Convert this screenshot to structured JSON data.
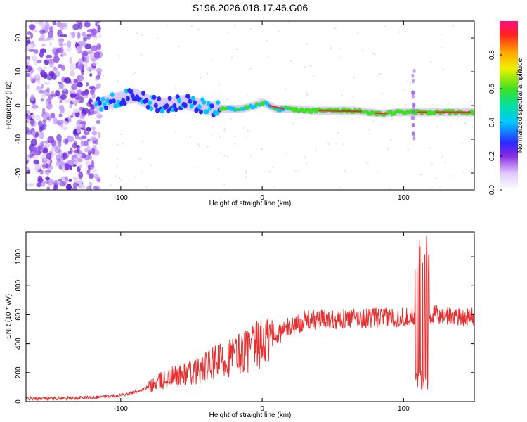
{
  "title": "S196.2026.018.17.46.G06",
  "colors": {
    "snr_line": "#e83030",
    "frame": "#000000",
    "stripe": "#e03030",
    "scatter": "#7a2ee0"
  },
  "chart_data": [
    {
      "type": "heatmap",
      "title": "S196.2026.018.17.46.G06",
      "xlabel": "Height of straight line (km)",
      "ylabel": "Frequency (Hz)",
      "xlim": [
        -167,
        150
      ],
      "ylim": [
        -25,
        25
      ],
      "xticks": [
        -100,
        0,
        100
      ],
      "yticks": [
        -20,
        -10,
        0,
        10,
        20
      ],
      "colorbar": {
        "label": "Normalized spectral amplitude",
        "range": [
          0,
          1
        ],
        "ticks": [
          0.0,
          0.2,
          0.4,
          0.6,
          0.8
        ],
        "tick_labels": [
          "0.0",
          "0.2",
          "0.4",
          "0.6",
          "0.8"
        ]
      },
      "ridge_profile": [
        [
          -117,
          0
        ],
        [
          -100,
          2
        ],
        [
          -90,
          3
        ],
        [
          -80,
          1
        ],
        [
          -70,
          0
        ],
        [
          -55,
          1
        ],
        [
          -45,
          0
        ],
        [
          -35,
          -1
        ],
        [
          -25,
          -1
        ],
        [
          -15,
          -1
        ],
        [
          -5,
          0
        ],
        [
          0,
          1
        ],
        [
          10,
          -1
        ],
        [
          20,
          -1
        ],
        [
          35,
          -1.5
        ],
        [
          50,
          -1.5
        ],
        [
          65,
          -1.5
        ],
        [
          75,
          -2
        ],
        [
          85,
          -2.5
        ],
        [
          95,
          -2
        ],
        [
          105,
          -2
        ],
        [
          115,
          -2
        ],
        [
          125,
          -2
        ],
        [
          150,
          -2
        ]
      ]
    },
    {
      "type": "line",
      "xlabel": "Height of straight line (km)",
      "ylabel": "SNR (10 * v/v)",
      "xlim": [
        -167,
        150
      ],
      "ylim": [
        0,
        1170
      ],
      "xticks": [
        -100,
        0,
        100
      ],
      "yticks": [
        0,
        200,
        400,
        600,
        800,
        1000
      ],
      "series": [
        {
          "name": "SNR",
          "trend": [
            [
              -167,
              20
            ],
            [
              -130,
              25
            ],
            [
              -110,
              35
            ],
            [
              -100,
              45
            ],
            [
              -90,
              65
            ],
            [
              -80,
              100
            ],
            [
              -70,
              150
            ],
            [
              -60,
              180
            ],
            [
              -50,
              200
            ],
            [
              -40,
              240
            ],
            [
              -30,
              280
            ],
            [
              -20,
              320
            ],
            [
              -10,
              360
            ],
            [
              0,
              400
            ],
            [
              10,
              460
            ],
            [
              20,
              520
            ],
            [
              30,
              560
            ],
            [
              50,
              570
            ],
            [
              70,
              575
            ],
            [
              90,
              580
            ],
            [
              105,
              585
            ],
            [
              110,
              600
            ],
            [
              115,
              600
            ],
            [
              150,
              585
            ]
          ],
          "spike": {
            "x": [
              108,
              118
            ],
            "max": 1150,
            "min": 70
          }
        }
      ]
    }
  ]
}
